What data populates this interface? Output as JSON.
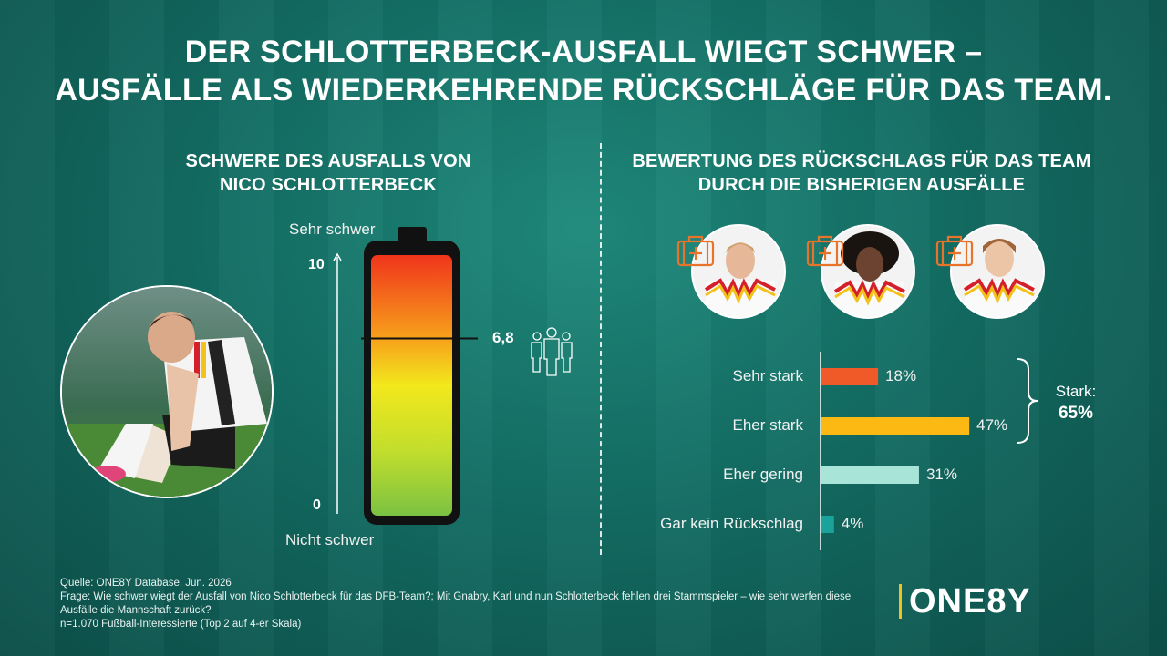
{
  "headline": {
    "line1": "DER SCHLOTTERBECK-AUSFALL WIEGT SCHWER –",
    "line2": "AUSFÄLLE ALS WIEDERKEHRENDE RÜCKSCHLÄGE FÜR DAS TEAM."
  },
  "left_panel": {
    "title_line1": "SCHWERE DES AUSFALLS VON",
    "title_line2": "NICO SCHLOTTERBECK",
    "top_label": "Sehr schwer",
    "bottom_label": "Nicht schwer",
    "max_label": "10",
    "min_label": "0",
    "value_label": "6,8"
  },
  "right_panel": {
    "title_line1": "BEWERTUNG DES RÜCKSCHLAGS FÜR DAS TEAM",
    "title_line2": "DURCH DIE BISHERIGEN AUSFÄLLE",
    "bracket_label": "Stark:",
    "bracket_value": "65%"
  },
  "chart_data": [
    {
      "type": "bar",
      "orientation": "vertical-gauge",
      "scale_min": 0,
      "scale_max": 10,
      "value": 6.8,
      "top_label": "Sehr schwer",
      "bottom_label": "Nicht schwer"
    },
    {
      "type": "bar",
      "orientation": "horizontal",
      "categories": [
        "Sehr stark",
        "Eher stark",
        "Eher gering",
        "Gar kein Rückschlag"
      ],
      "values": [
        18,
        47,
        31,
        4
      ],
      "value_labels": [
        "18%",
        "47%",
        "31%",
        "4%"
      ],
      "colors": [
        "#f05a28",
        "#fdb913",
        "#a8e4d8",
        "#1aa39a"
      ],
      "bracket": {
        "covers": [
          "Sehr stark",
          "Eher stark"
        ],
        "label": "Stark:",
        "value": "65%"
      }
    }
  ],
  "colors": {
    "accent_yellow": "#f2c21a",
    "background": "#136d63",
    "icon_orange": "#e8742b"
  },
  "footer": {
    "line1": "Quelle: ONE8Y Database, Jun. 2026",
    "line2": "Frage: Wie schwer wiegt der Ausfall von Nico Schlotterbeck für das DFB-Team?; Mit Gnabry, Karl und nun Schlotterbeck fehlen drei Stammspieler – wie sehr werfen diese Ausfälle die Mannschaft zurück?",
    "line3": "n=1.070 Fußball-Interessierte (Top 2 auf 4-er Skala)"
  },
  "logo": {
    "text": "ONE8Y"
  },
  "icons": {
    "people": "people-group-icon",
    "medical_kit": "first-aid-kit-icon",
    "arrow": "arrow-up-icon"
  }
}
